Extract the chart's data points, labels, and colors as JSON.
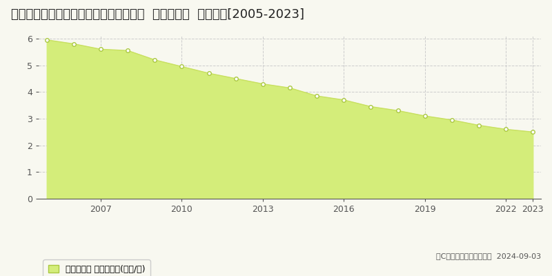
{
  "title": "石川県鳳珠郡穴水町字由比ケ丘は２８番  基準地価格  地価推移[2005-2023]",
  "years": [
    2005,
    2006,
    2007,
    2008,
    2009,
    2010,
    2011,
    2012,
    2013,
    2014,
    2015,
    2016,
    2017,
    2018,
    2019,
    2020,
    2021,
    2022,
    2023
  ],
  "values": [
    5.95,
    5.8,
    5.6,
    5.55,
    5.2,
    4.95,
    4.7,
    4.5,
    4.3,
    4.15,
    3.85,
    3.7,
    3.45,
    3.3,
    3.1,
    2.95,
    2.75,
    2.6,
    2.5
  ],
  "fill_color": "#d4ed7a",
  "line_color": "#c8e060",
  "marker_facecolor": "#ffffff",
  "marker_edgecolor": "#aac840",
  "background_color": "#f8f8f0",
  "plot_bg_color": "#f8f8f0",
  "grid_color": "#cccccc",
  "title_fontsize": 13,
  "ylim": [
    0,
    6.1
  ],
  "yticks": [
    0,
    1,
    2,
    3,
    4,
    5,
    6
  ],
  "xticks": [
    2007,
    2010,
    2013,
    2016,
    2019,
    2022,
    2023
  ],
  "legend_label": "基準地価格 平均坪単価(万円/坪)",
  "copyright": "（C）土地価格ドットコム  2024-09-03"
}
